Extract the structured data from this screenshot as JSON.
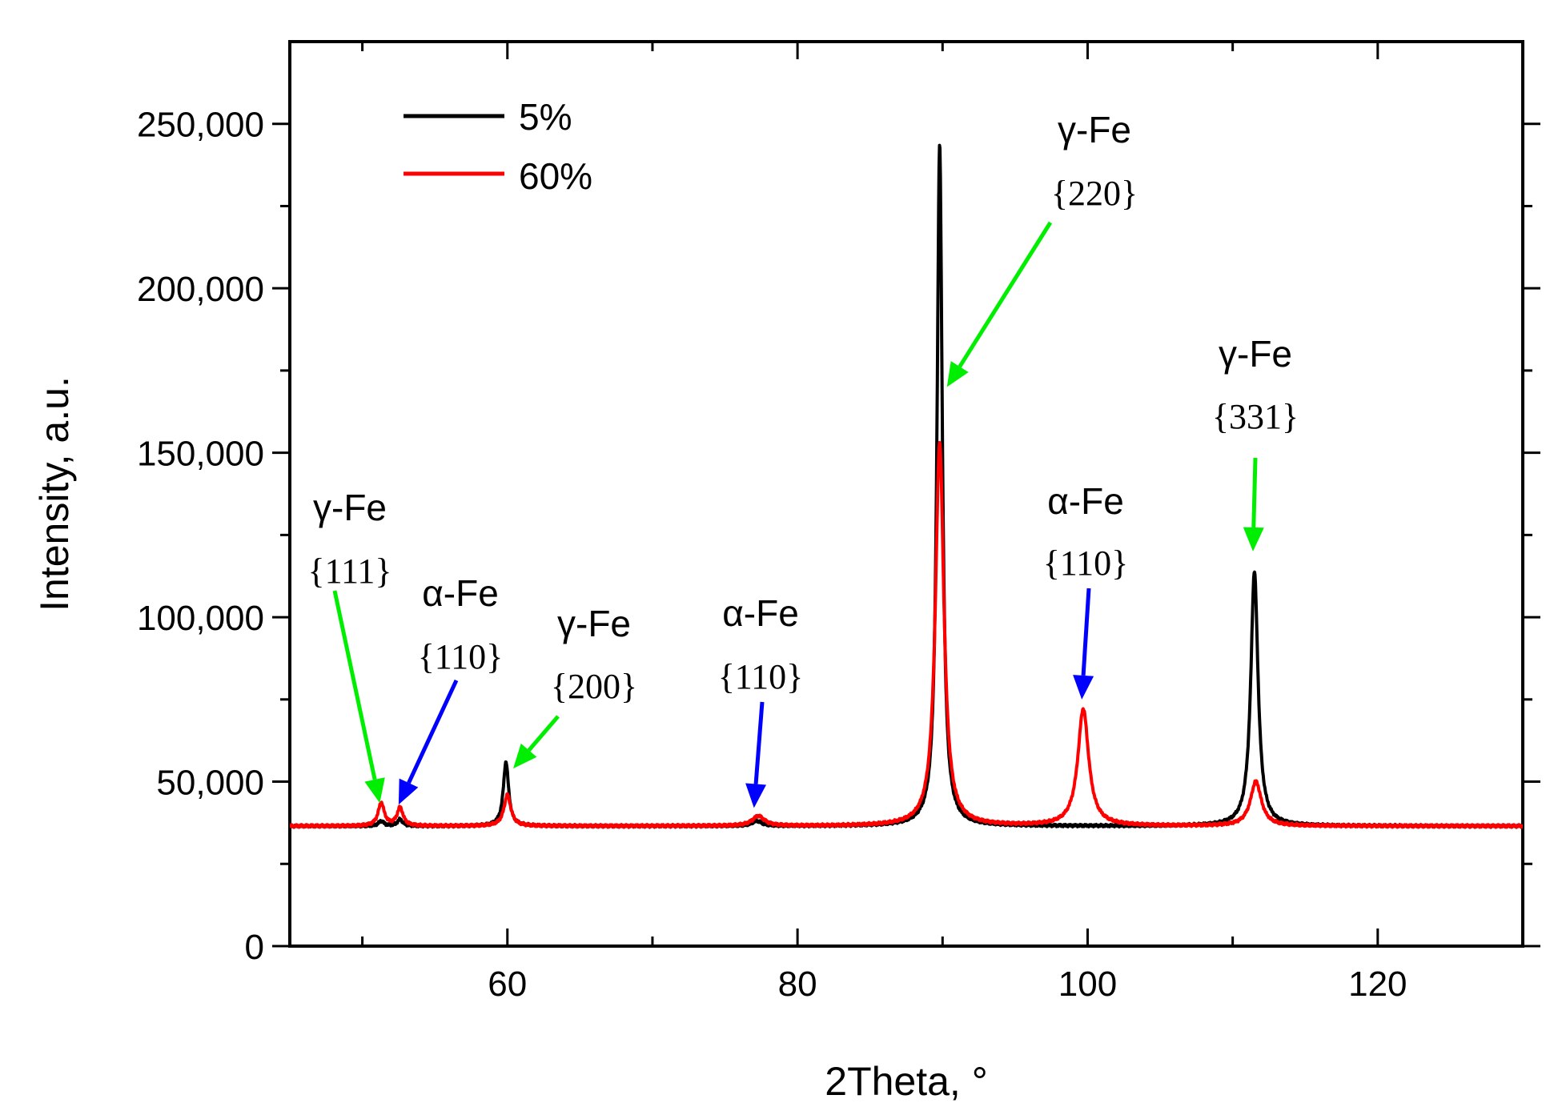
{
  "chart_data": {
    "type": "line",
    "title": "",
    "xlabel": "2Theta, °",
    "ylabel": "Intensity, a.u.",
    "xlim": [
      45,
      130
    ],
    "ylim": [
      0,
      275000
    ],
    "x_ticks": [
      60,
      80,
      100,
      120
    ],
    "x_tick_labels": [
      "60",
      "80",
      "100",
      "120"
    ],
    "x_minor_ticks": [
      50,
      70,
      90,
      110
    ],
    "y_ticks": [
      0,
      50000,
      100000,
      150000,
      200000,
      250000
    ],
    "y_tick_labels": [
      "0",
      "50,000",
      "100,000",
      "150,000",
      "200,000",
      "250,000"
    ],
    "grid": false,
    "legend_position": "top-left",
    "baseline": 36500,
    "series": [
      {
        "name": "5%",
        "color": "#000000",
        "peaks": [
          {
            "x": 51.3,
            "height": 38000,
            "width": 0.22
          },
          {
            "x": 52.6,
            "height": 38500,
            "width": 0.22
          },
          {
            "x": 59.9,
            "height": 56000,
            "width": 0.22
          },
          {
            "x": 77.2,
            "height": 38000,
            "width": 0.4
          },
          {
            "x": 89.8,
            "height": 244000,
            "width": 0.22
          },
          {
            "x": 111.5,
            "height": 114000,
            "width": 0.3
          }
        ]
      },
      {
        "name": "60%",
        "color": "#ff0000",
        "peaks": [
          {
            "x": 51.3,
            "height": 43500,
            "width": 0.25
          },
          {
            "x": 52.6,
            "height": 42000,
            "width": 0.25
          },
          {
            "x": 60.0,
            "height": 46000,
            "width": 0.28
          },
          {
            "x": 77.3,
            "height": 39500,
            "width": 0.5
          },
          {
            "x": 89.8,
            "height": 153000,
            "width": 0.35
          },
          {
            "x": 99.7,
            "height": 72000,
            "width": 0.45
          },
          {
            "x": 111.6,
            "height": 50000,
            "width": 0.45
          }
        ]
      }
    ],
    "annotations": [
      {
        "phase": "γ-Fe",
        "hkl": "{111}",
        "arrow_color": "#00ee00",
        "target": [
          51.2,
          43500
        ]
      },
      {
        "phase": "α-Fe",
        "hkl": "{110}",
        "arrow_color": "#0000ff",
        "target": [
          52.5,
          43000
        ]
      },
      {
        "phase": "γ-Fe",
        "hkl": "{200}",
        "arrow_color": "#00ee00",
        "target": [
          60.4,
          54000
        ]
      },
      {
        "phase": "α-Fe",
        "hkl": "{110}",
        "arrow_color": "#0000ff",
        "target": [
          77.0,
          42000
        ]
      },
      {
        "phase": "γ-Fe",
        "hkl": "{220}",
        "arrow_color": "#00ee00",
        "target": [
          90.3,
          170000
        ]
      },
      {
        "phase": "α-Fe",
        "hkl": "{110}",
        "arrow_color": "#0000ff",
        "target": [
          99.6,
          75000
        ]
      },
      {
        "phase": "γ-Fe",
        "hkl": "{331}",
        "arrow_color": "#00ee00",
        "target": [
          111.4,
          120000
        ]
      }
    ]
  }
}
